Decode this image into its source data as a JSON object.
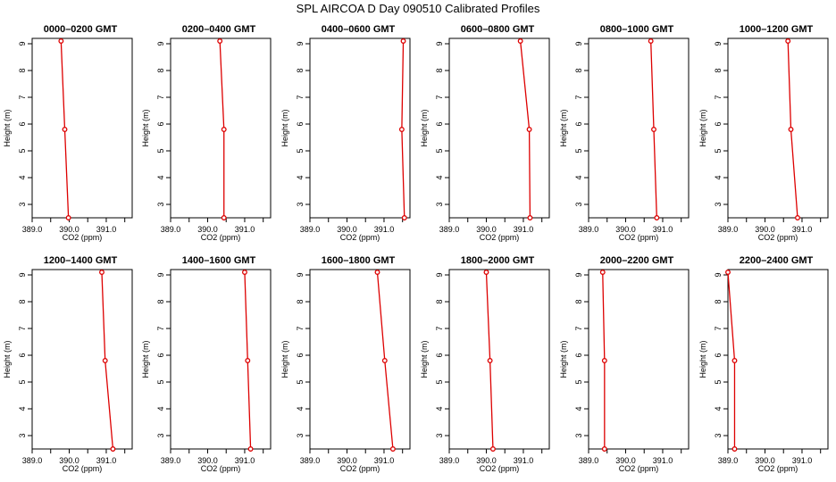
{
  "title": "SPL AIRCOA D  Day 090510  Calibrated Profiles",
  "chart_data": {
    "type": "line",
    "xlabel": "CO2 (ppm)",
    "ylabel": "Height (m)",
    "xlim": [
      389.0,
      391.7
    ],
    "ylim": [
      2.5,
      9.2
    ],
    "x_ticks": [
      389.0,
      389.5,
      390.0,
      390.5,
      391.0,
      391.5
    ],
    "x_tick_labels": [
      "389.0",
      "",
      "390.0",
      "",
      "391.0",
      ""
    ],
    "y_ticks": [
      3,
      4,
      5,
      6,
      7,
      8,
      9
    ],
    "line_color": "#dd0000",
    "heights": [
      9.1,
      5.8,
      2.5
    ],
    "panels": [
      {
        "title": "0000–0200 GMT",
        "co2": [
          389.78,
          389.88,
          389.98
        ]
      },
      {
        "title": "0200–0400 GMT",
        "co2": [
          390.33,
          390.44,
          390.44
        ]
      },
      {
        "title": "0400–0600 GMT",
        "co2": [
          391.52,
          391.48,
          391.55
        ]
      },
      {
        "title": "0600–0800 GMT",
        "co2": [
          390.92,
          391.16,
          391.18
        ]
      },
      {
        "title": "0800–1000 GMT",
        "co2": [
          390.68,
          390.76,
          390.84
        ]
      },
      {
        "title": "1000–1200 GMT",
        "co2": [
          390.62,
          390.7,
          390.88
        ]
      },
      {
        "title": "1200–1400 GMT",
        "co2": [
          390.88,
          390.97,
          391.18
        ]
      },
      {
        "title": "1400–1600 GMT",
        "co2": [
          391.0,
          391.08,
          391.16
        ]
      },
      {
        "title": "1600–1800 GMT",
        "co2": [
          390.82,
          391.02,
          391.24
        ]
      },
      {
        "title": "1800–2000 GMT",
        "co2": [
          390.0,
          390.1,
          390.18
        ]
      },
      {
        "title": "2000–2200 GMT",
        "co2": [
          389.38,
          389.43,
          389.43
        ]
      },
      {
        "title": "2200–2400 GMT",
        "co2": [
          389.0,
          389.18,
          389.18
        ]
      }
    ]
  }
}
